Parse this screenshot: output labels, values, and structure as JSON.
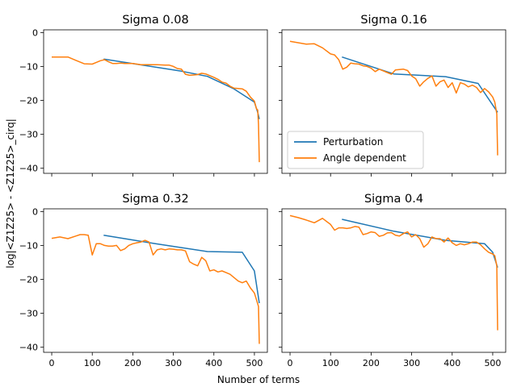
{
  "figure": {
    "ylabel": "log|<Z1Z25> - <Z1Z25>_cirq|",
    "xlabel": "Number of terms"
  },
  "colors": {
    "perturbation": "#1f77b4",
    "angle": "#ff7f0e"
  },
  "legend": {
    "placement": "lower-left",
    "panel_index": 1,
    "entries": [
      "Perturbation",
      "Angle dependent"
    ]
  },
  "chart_data": [
    {
      "type": "line",
      "title": "Sigma 0.08",
      "xlim": [
        -20,
        532
      ],
      "ylim": [
        -41.5,
        0.8
      ],
      "xticks": [
        0,
        100,
        200,
        300,
        400,
        500
      ],
      "yticks": [
        0,
        -10,
        -20,
        -30,
        -40
      ],
      "series": [
        {
          "name": "Perturbation",
          "x": [
            128,
            256,
            320,
            384,
            448,
            500,
            508,
            512
          ],
          "y": [
            -7.8,
            -10.2,
            -11.4,
            -12.9,
            -16.5,
            -20.5,
            -23.5,
            -25.5
          ]
        },
        {
          "name": "Angle dependent",
          "x": [
            0,
            20,
            40,
            60,
            80,
            100,
            110,
            120,
            130,
            140,
            150,
            160,
            170,
            180,
            190,
            200,
            210,
            220,
            240,
            260,
            280,
            290,
            300,
            310,
            320,
            330,
            340,
            350,
            360,
            370,
            380,
            390,
            400,
            410,
            420,
            430,
            440,
            450,
            460,
            470,
            480,
            490,
            500,
            505,
            508,
            510,
            512
          ],
          "y": [
            -7.2,
            -7.2,
            -7.2,
            -8.2,
            -9.2,
            -9.3,
            -8.8,
            -8.3,
            -8.0,
            -8.6,
            -9.1,
            -9.1,
            -9.0,
            -9.1,
            -9.1,
            -9.1,
            -9.3,
            -9.5,
            -9.5,
            -9.5,
            -9.6,
            -9.6,
            -10.0,
            -10.6,
            -10.8,
            -12.3,
            -12.6,
            -12.5,
            -12.4,
            -12.0,
            -12.2,
            -12.7,
            -13.2,
            -13.8,
            -14.6,
            -14.9,
            -15.8,
            -16.4,
            -16.5,
            -16.6,
            -17.3,
            -19.0,
            -20.2,
            -22.5,
            -22.8,
            -27.0,
            -38.2
          ]
        }
      ]
    },
    {
      "type": "line",
      "title": "Sigma 0.16",
      "xlim": [
        -20,
        532
      ],
      "ylim": [
        -41.5,
        0.8
      ],
      "xticks": [
        0,
        100,
        200,
        300,
        400,
        500
      ],
      "yticks": [
        0,
        -10,
        -20,
        -30,
        -40
      ],
      "series": [
        {
          "name": "Perturbation",
          "x": [
            128,
            256,
            384,
            464,
            512
          ],
          "y": [
            -7.2,
            -12.2,
            -13.0,
            -15.0,
            -23.5
          ]
        },
        {
          "name": "Angle dependent",
          "x": [
            0,
            20,
            40,
            60,
            80,
            100,
            110,
            120,
            130,
            140,
            150,
            160,
            170,
            180,
            190,
            200,
            210,
            220,
            230,
            240,
            250,
            260,
            270,
            280,
            290,
            300,
            310,
            320,
            330,
            340,
            350,
            360,
            370,
            380,
            390,
            400,
            410,
            420,
            430,
            440,
            450,
            460,
            470,
            480,
            490,
            500,
            505,
            510,
            512
          ],
          "y": [
            -2.6,
            -3.0,
            -3.4,
            -3.3,
            -4.5,
            -6.3,
            -6.6,
            -8.0,
            -10.8,
            -10.2,
            -9.0,
            -9.2,
            -9.3,
            -9.8,
            -10.0,
            -10.5,
            -11.5,
            -10.8,
            -11.3,
            -11.8,
            -12.3,
            -11.0,
            -10.9,
            -10.8,
            -11.2,
            -12.8,
            -13.6,
            -15.8,
            -14.5,
            -13.5,
            -12.8,
            -15.8,
            -14.5,
            -14.0,
            -16.2,
            -14.8,
            -17.8,
            -14.8,
            -15.2,
            -16.0,
            -15.5,
            -16.2,
            -17.7,
            -16.5,
            -17.5,
            -19.0,
            -20.5,
            -24.0,
            -36.2
          ]
        }
      ]
    },
    {
      "type": "line",
      "title": "Sigma 0.32",
      "xlim": [
        -20,
        532
      ],
      "ylim": [
        -41.5,
        0.8
      ],
      "xticks": [
        0,
        100,
        200,
        300,
        400,
        500
      ],
      "yticks": [
        0,
        -10,
        -20,
        -30,
        -40
      ],
      "series": [
        {
          "name": "Perturbation",
          "x": [
            128,
            256,
            384,
            470,
            500,
            512
          ],
          "y": [
            -7.0,
            -9.5,
            -11.8,
            -12.0,
            -17.5,
            -27.0
          ]
        },
        {
          "name": "Angle dependent",
          "x": [
            0,
            20,
            40,
            60,
            70,
            80,
            90,
            100,
            110,
            120,
            130,
            140,
            150,
            160,
            170,
            180,
            190,
            200,
            210,
            220,
            230,
            240,
            250,
            260,
            270,
            280,
            290,
            300,
            310,
            320,
            330,
            340,
            350,
            360,
            370,
            380,
            390,
            400,
            410,
            420,
            430,
            440,
            450,
            460,
            470,
            480,
            490,
            500,
            505,
            510,
            512
          ],
          "y": [
            -7.9,
            -7.5,
            -8.0,
            -7.2,
            -6.8,
            -6.8,
            -7.0,
            -12.8,
            -9.5,
            -9.5,
            -10.0,
            -10.2,
            -10.2,
            -10.0,
            -11.5,
            -11.0,
            -10.0,
            -9.5,
            -9.2,
            -9.0,
            -8.5,
            -9.0,
            -12.8,
            -11.3,
            -11.0,
            -11.3,
            -11.0,
            -11.1,
            -11.3,
            -11.3,
            -11.6,
            -14.8,
            -15.5,
            -16.0,
            -13.5,
            -14.5,
            -17.5,
            -17.2,
            -17.8,
            -17.5,
            -18.0,
            -18.5,
            -19.5,
            -20.5,
            -21.0,
            -20.5,
            -22.5,
            -24.0,
            -26.0,
            -28.0,
            -39.0
          ]
        }
      ]
    },
    {
      "type": "line",
      "title": "Sigma 0.4",
      "xlim": [
        -20,
        532
      ],
      "ylim": [
        -41.5,
        0.8
      ],
      "xticks": [
        0,
        100,
        200,
        300,
        400,
        500
      ],
      "yticks": [
        0,
        -10,
        -20,
        -30,
        -40
      ],
      "series": [
        {
          "name": "Perturbation",
          "x": [
            128,
            256,
            384,
            480,
            500,
            512
          ],
          "y": [
            -2.3,
            -5.8,
            -8.5,
            -9.5,
            -12.0,
            -16.5
          ]
        },
        {
          "name": "Angle dependent",
          "x": [
            0,
            20,
            40,
            60,
            80,
            100,
            110,
            120,
            130,
            140,
            150,
            160,
            170,
            180,
            190,
            200,
            210,
            220,
            230,
            240,
            250,
            260,
            270,
            280,
            290,
            300,
            310,
            320,
            330,
            340,
            350,
            360,
            370,
            380,
            390,
            400,
            410,
            420,
            430,
            440,
            450,
            460,
            470,
            480,
            490,
            500,
            505,
            510,
            512
          ],
          "y": [
            -1.2,
            -1.8,
            -2.5,
            -3.3,
            -2.0,
            -3.8,
            -5.5,
            -4.8,
            -4.8,
            -5.0,
            -4.8,
            -4.4,
            -4.6,
            -6.8,
            -6.5,
            -6.0,
            -6.2,
            -7.3,
            -7.0,
            -6.3,
            -6.2,
            -7.0,
            -7.2,
            -6.5,
            -6.0,
            -7.5,
            -6.8,
            -8.0,
            -10.5,
            -9.5,
            -7.5,
            -8.0,
            -8.0,
            -9.0,
            -7.8,
            -9.2,
            -10.0,
            -9.5,
            -9.8,
            -9.5,
            -9.0,
            -9.0,
            -9.8,
            -11.0,
            -12.0,
            -12.5,
            -13.0,
            -16.0,
            -35.0
          ]
        }
      ]
    }
  ]
}
